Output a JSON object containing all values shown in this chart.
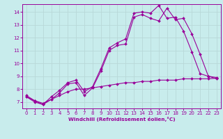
{
  "xlabel": "Windchill (Refroidissement éolien,°C)",
  "bg_color": "#c8ecec",
  "line_color": "#990099",
  "grid_color": "#b8d8d8",
  "xlim": [
    -0.5,
    23.5
  ],
  "ylim": [
    6.5,
    14.6
  ],
  "yticks": [
    7,
    8,
    9,
    10,
    11,
    12,
    13,
    14
  ],
  "xticks": [
    0,
    1,
    2,
    3,
    4,
    5,
    6,
    7,
    8,
    9,
    10,
    11,
    12,
    13,
    14,
    15,
    16,
    17,
    18,
    19,
    20,
    21,
    22,
    23
  ],
  "line1_x": [
    0,
    1,
    2,
    3,
    4,
    5,
    6,
    7,
    8,
    9,
    10,
    11,
    12,
    13,
    14,
    15,
    16,
    17,
    18,
    19,
    20,
    21,
    22,
    23
  ],
  "line1_y": [
    7.4,
    7.0,
    6.8,
    7.2,
    7.7,
    8.4,
    8.5,
    7.5,
    8.1,
    9.4,
    11.0,
    11.4,
    11.5,
    13.6,
    13.8,
    13.5,
    13.3,
    14.3,
    13.4,
    13.5,
    12.3,
    10.7,
    9.0,
    8.8
  ],
  "line2_x": [
    0,
    1,
    2,
    3,
    4,
    5,
    6,
    7,
    8,
    9,
    10,
    11,
    12,
    13,
    14,
    15,
    16,
    17,
    18,
    19,
    20,
    21,
    22,
    23
  ],
  "line2_y": [
    7.5,
    7.1,
    6.8,
    7.4,
    7.9,
    8.5,
    8.7,
    7.8,
    8.2,
    9.6,
    11.2,
    11.6,
    11.9,
    13.9,
    14.0,
    13.9,
    14.5,
    13.5,
    13.6,
    12.5,
    10.9,
    9.2,
    9.0,
    8.9
  ],
  "line3_x": [
    0,
    1,
    2,
    3,
    4,
    5,
    6,
    7,
    8,
    9,
    10,
    11,
    12,
    13,
    14,
    15,
    16,
    17,
    18,
    19,
    20,
    21,
    22,
    23
  ],
  "line3_y": [
    7.4,
    7.1,
    6.9,
    7.2,
    7.5,
    7.8,
    8.0,
    8.0,
    8.1,
    8.2,
    8.3,
    8.4,
    8.5,
    8.5,
    8.6,
    8.6,
    8.7,
    8.7,
    8.7,
    8.8,
    8.8,
    8.8,
    8.8,
    8.85
  ]
}
